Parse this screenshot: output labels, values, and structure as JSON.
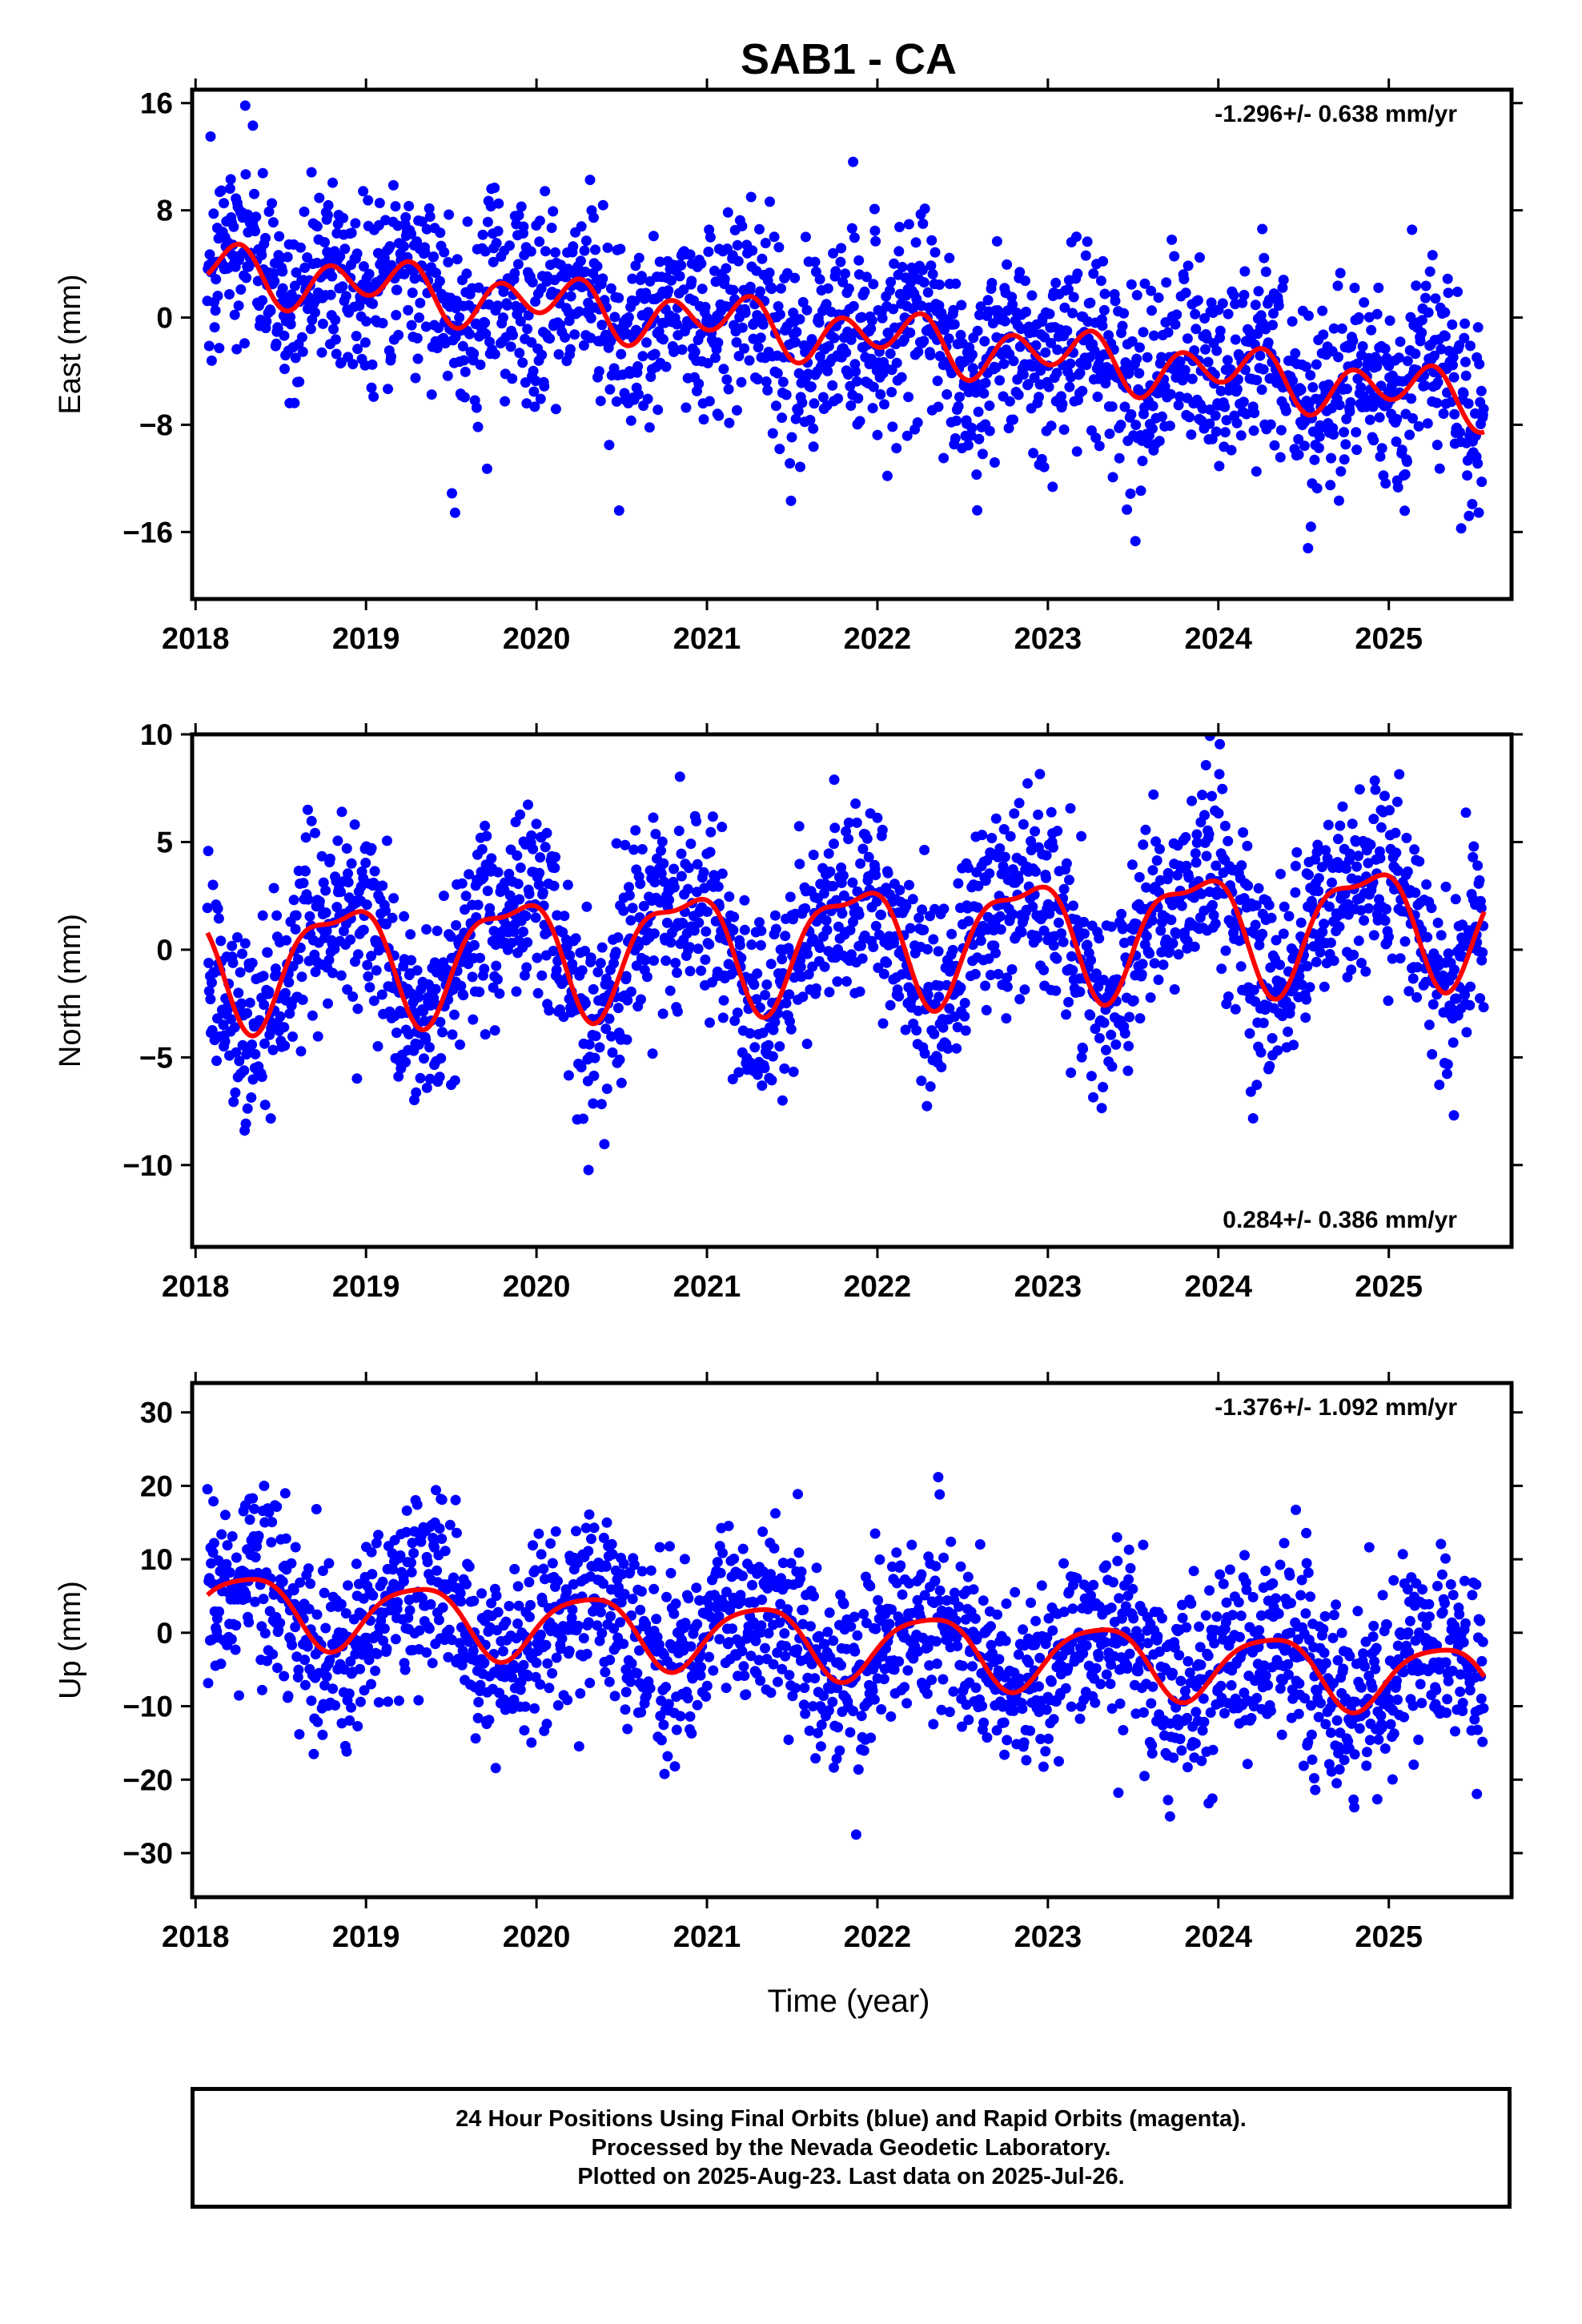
{
  "chart_data": {
    "type": "scatter",
    "title": "SAB1 - CA",
    "xlabel": "Time (year)",
    "x_ticks": [
      "2018",
      "2019",
      "2020",
      "2021",
      "2022",
      "2023",
      "2024",
      "2025"
    ],
    "xlim": [
      2017.98,
      2025.72
    ],
    "data_span": [
      2018.07,
      2025.56
    ],
    "colors": {
      "points": "#0000ff",
      "fit": "#ff0000",
      "frame": "#000000"
    },
    "panels": [
      {
        "name": "east",
        "ylabel": "East (mm)",
        "ylim": [
          -21,
          17
        ],
        "yticks": [
          16,
          8,
          0,
          -8,
          -16
        ],
        "ytick_labels": [
          "16",
          "8",
          "0",
          "−8",
          "−16"
        ],
        "rate_label": "-1.296+/- 0.638 mm/yr",
        "rate_position": "top-right",
        "trend": {
          "start": 3.6,
          "slope": -1.296
        },
        "annual_amplitude": 1.0,
        "annual_phase": 0.15,
        "semiannual_amplitude": 1.6,
        "semiannual_phase": 0.35,
        "scatter_sd": 3.6,
        "point_count": 2100
      },
      {
        "name": "north",
        "ylabel": "North (mm)",
        "ylim": [
          -13.8,
          10
        ],
        "yticks": [
          10,
          5,
          0,
          -5,
          -10
        ],
        "ytick_labels": [
          "10",
          "5",
          "0",
          "−5",
          "−10"
        ],
        "rate_label": "0.284+/- 0.386 mm/yr",
        "rate_position": "bottom-right",
        "trend": {
          "start": -0.6,
          "slope": 0.284
        },
        "annual_amplitude": 2.6,
        "annual_phase": 0.4,
        "semiannual_amplitude": 0.9,
        "semiannual_phase": 0.55,
        "scatter_sd": 2.3,
        "point_count": 2100
      },
      {
        "name": "up",
        "ylabel": "Up (mm)",
        "ylim": [
          -36,
          34
        ],
        "yticks": [
          30,
          20,
          10,
          0,
          -10,
          -20,
          -30
        ],
        "ytick_labels": [
          "30",
          "20",
          "10",
          "0",
          "−10",
          "−20",
          "−30"
        ],
        "rate_label": "-1.376+/- 1.092 mm/yr",
        "rate_position": "top-right",
        "trend": {
          "start": 3.8,
          "slope": -1.376
        },
        "annual_amplitude": 4.6,
        "annual_phase": 0.95,
        "semiannual_amplitude": 0.9,
        "semiannual_phase": 0.1,
        "scatter_sd": 6.2,
        "point_count": 2100
      }
    ]
  },
  "footer": {
    "line1": "24 Hour Positions Using Final Orbits (blue) and Rapid Orbits (magenta).",
    "line2": "Processed by the Nevada Geodetic Laboratory.",
    "line3": "Plotted on 2025-Aug-23. Last data on 2025-Jul-26."
  }
}
